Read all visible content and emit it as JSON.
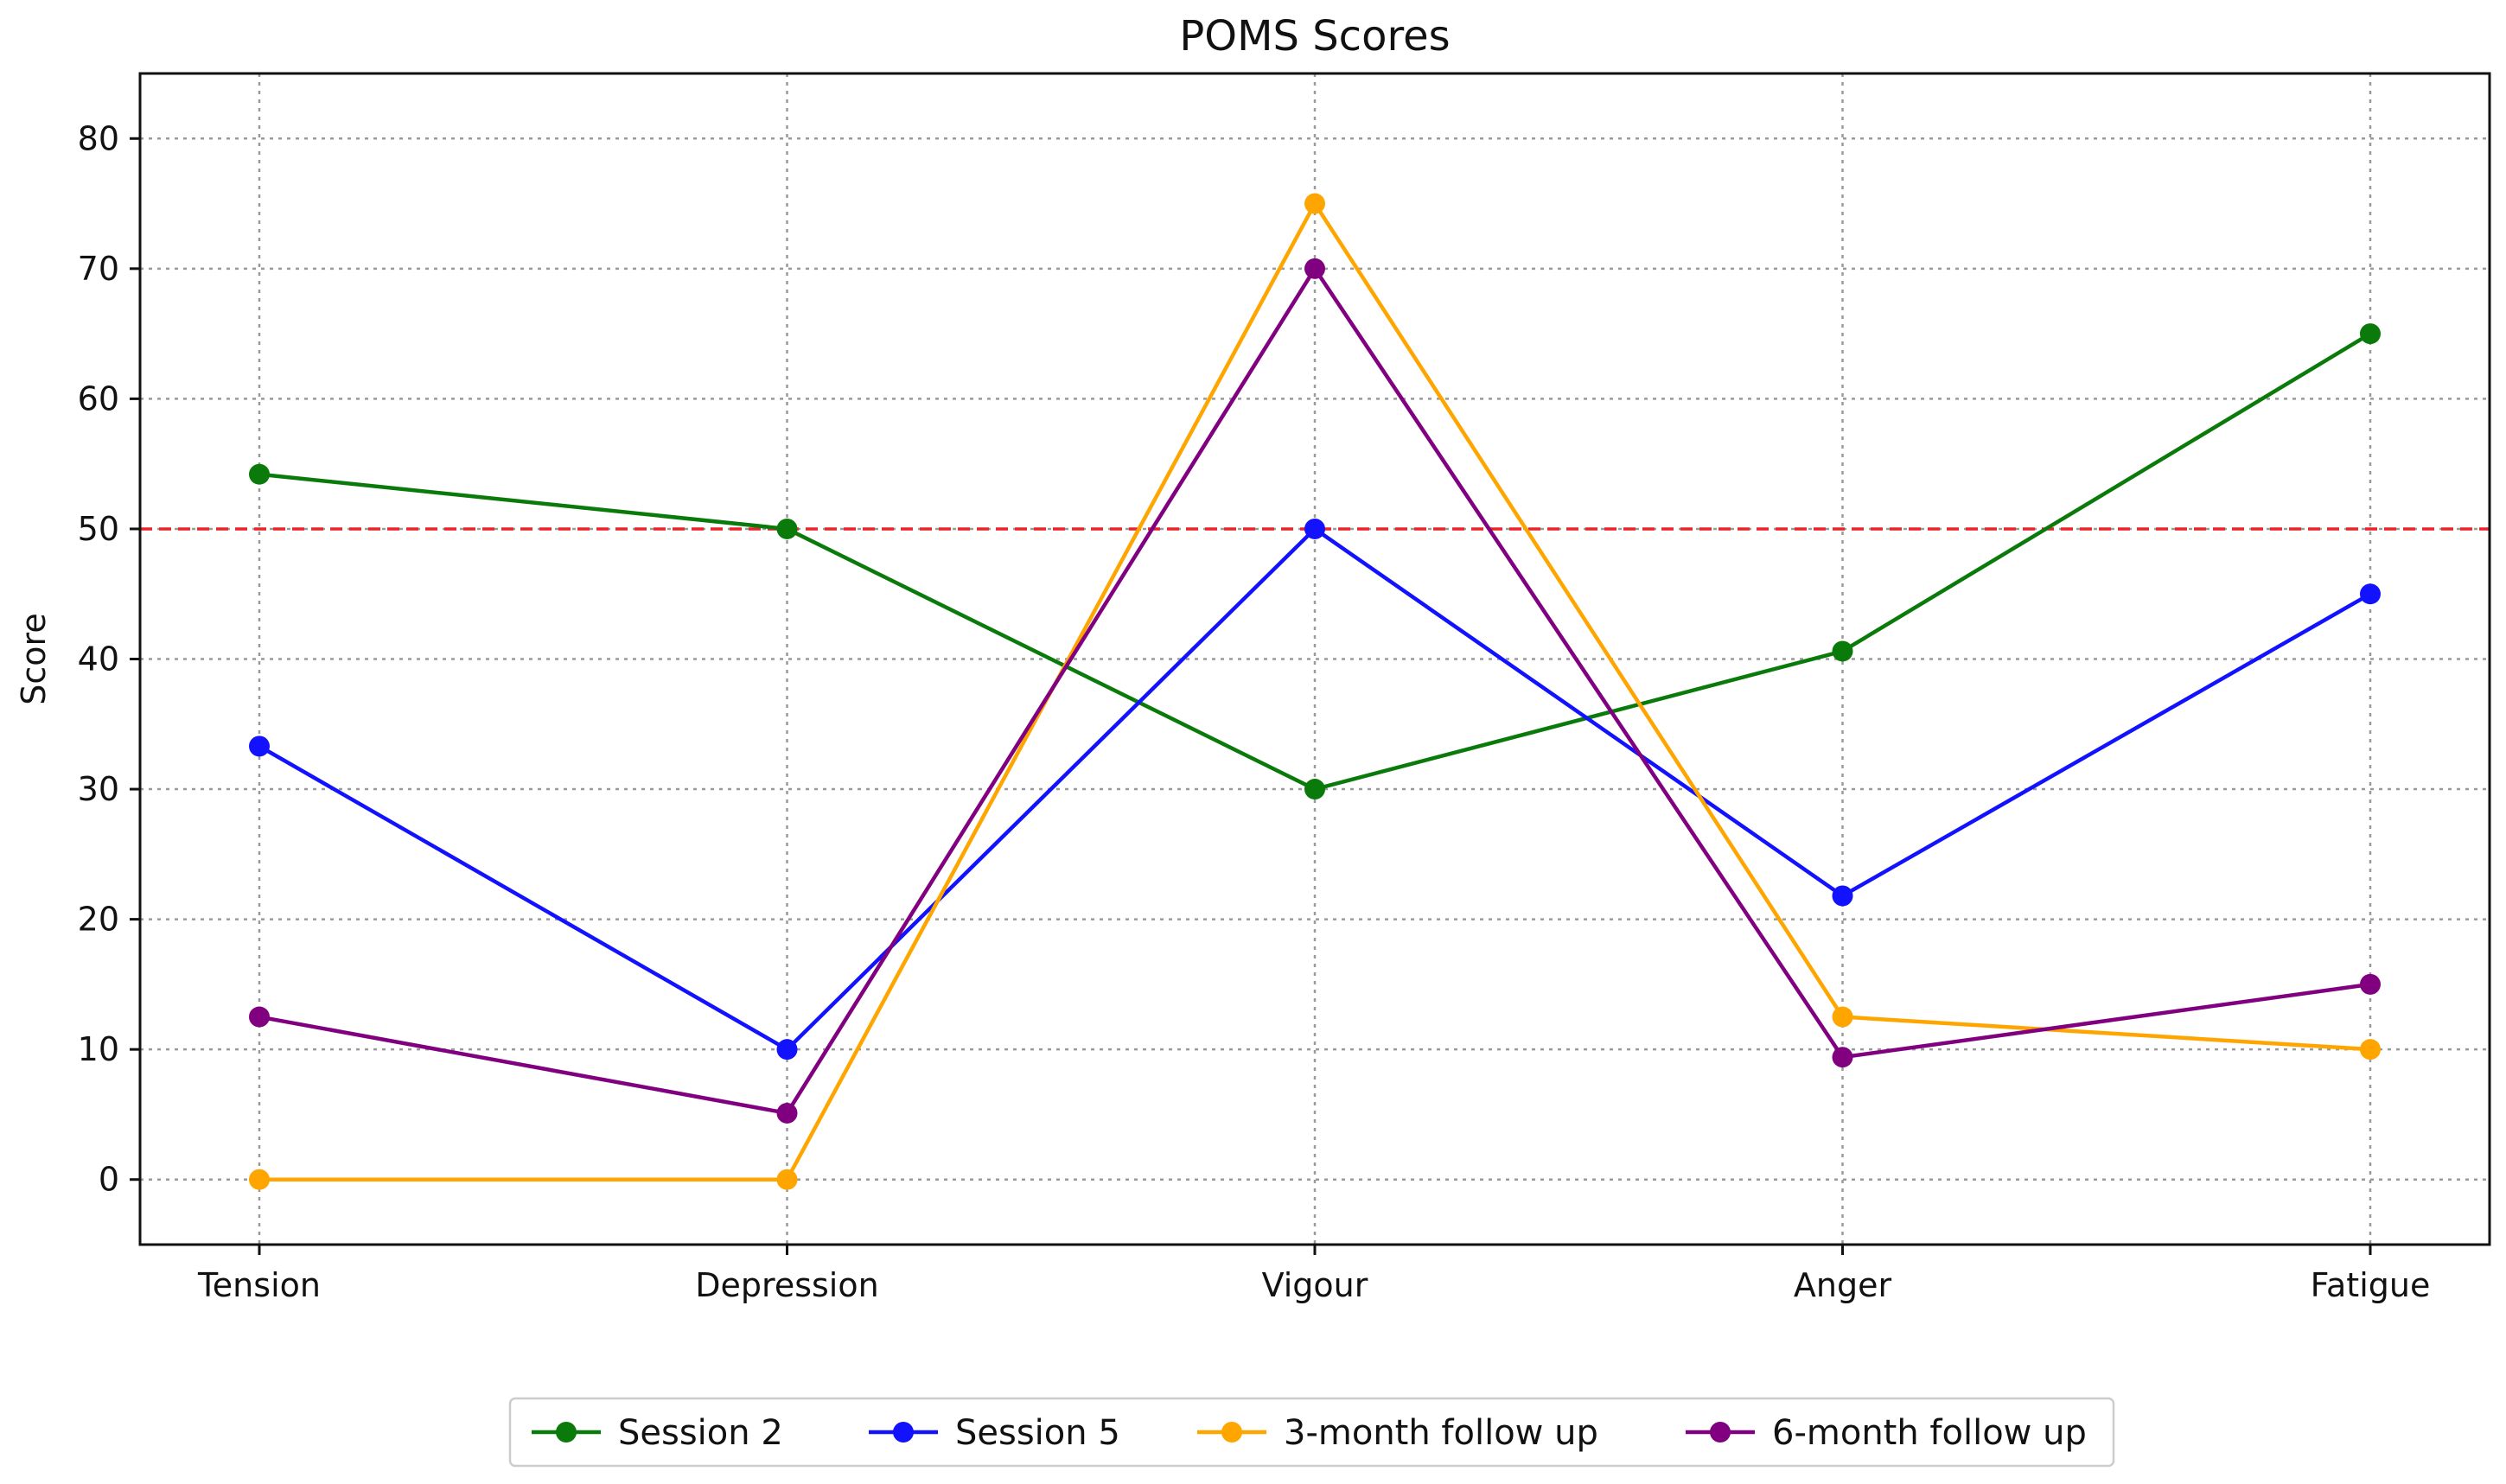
{
  "chart_data": {
    "type": "line",
    "title": "POMS Scores",
    "xlabel": "",
    "ylabel": "Score",
    "categories": [
      "Tension",
      "Depression",
      "Vigour",
      "Anger",
      "Fatigue"
    ],
    "ylim": [
      -5,
      85
    ],
    "yticks": [
      0,
      10,
      20,
      30,
      40,
      50,
      60,
      70,
      80
    ],
    "grid": true,
    "reference_line": {
      "y": 50,
      "color": "#e8242a",
      "style": "dashed"
    },
    "legend_position": "bottom-center",
    "series": [
      {
        "name": "Session 2",
        "color": "#0a7a0a",
        "values": [
          54.2,
          50.0,
          30.0,
          40.6,
          65.0
        ]
      },
      {
        "name": "Session 5",
        "color": "#1212ff",
        "values": [
          33.3,
          10.0,
          50.0,
          21.8,
          45.0
        ]
      },
      {
        "name": "3-month follow up",
        "color": "#ffa500",
        "values": [
          0.0,
          0.0,
          75.0,
          12.5,
          10.0
        ]
      },
      {
        "name": "6-month follow up",
        "color": "#800080",
        "values": [
          12.5,
          5.1,
          70.0,
          9.4,
          15.0
        ]
      }
    ]
  }
}
